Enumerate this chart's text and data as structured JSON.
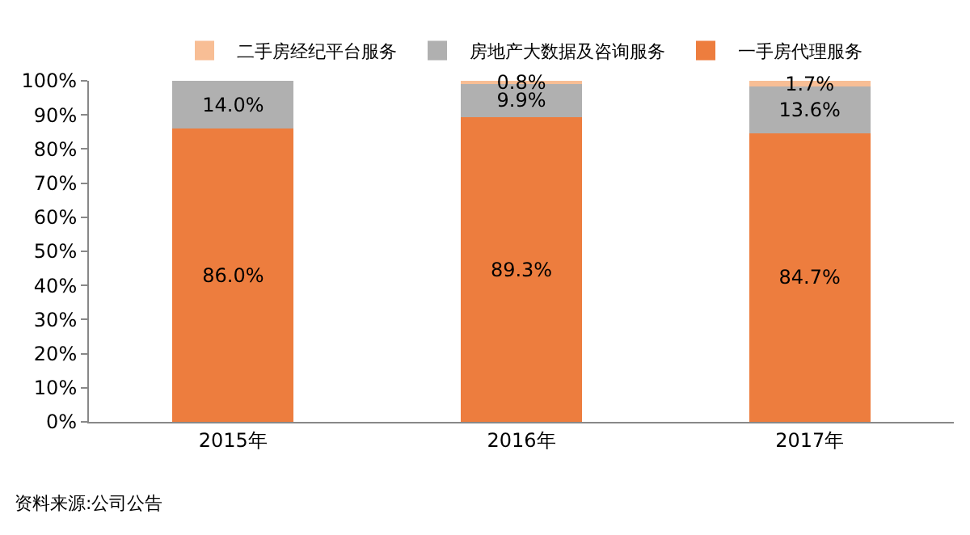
{
  "chart_data": {
    "type": "bar",
    "stacked": true,
    "categories": [
      "2015年",
      "2016年",
      "2017年"
    ],
    "series": [
      {
        "name": "一手房代理服务",
        "color": "#ed7d3e",
        "values": [
          86.0,
          89.3,
          84.7
        ],
        "value_labels": [
          "86.0%",
          "89.3%",
          "84.7%"
        ]
      },
      {
        "name": "房地产大数据及咨询服务",
        "color": "#b0b0b0",
        "values": [
          14.0,
          9.9,
          13.6
        ],
        "value_labels": [
          "14.0%",
          "9.9%",
          "13.6%"
        ]
      },
      {
        "name": "二手房经纪平台服务",
        "color": "#f8be95",
        "values": [
          null,
          0.8,
          1.7
        ],
        "value_labels": [
          null,
          "0.8%",
          "1.7%"
        ]
      }
    ],
    "ylim": [
      0,
      100
    ],
    "yticks": [
      {
        "value": 0,
        "label": "0%"
      },
      {
        "value": 10,
        "label": "10%"
      },
      {
        "value": 20,
        "label": "20%"
      },
      {
        "value": 30,
        "label": "30%"
      },
      {
        "value": 40,
        "label": "40%"
      },
      {
        "value": 50,
        "label": "50%"
      },
      {
        "value": 60,
        "label": "60%"
      },
      {
        "value": 70,
        "label": "70%"
      },
      {
        "value": 80,
        "label": "80%"
      },
      {
        "value": 90,
        "label": "90%"
      },
      {
        "value": 100,
        "label": "100%"
      }
    ],
    "legend": "top",
    "annotations": [
      "资料来源:公司公告"
    ]
  }
}
